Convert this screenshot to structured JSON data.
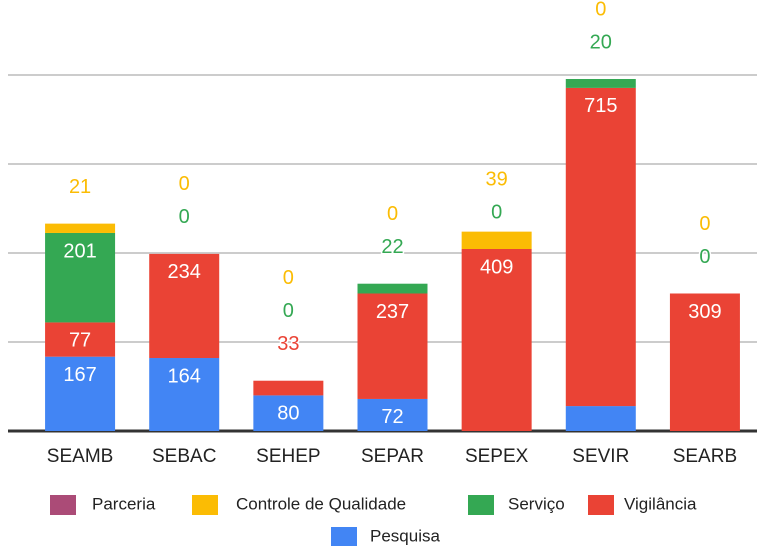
{
  "chart_data": {
    "type": "stacked_bar",
    "categories": [
      "SEAMB",
      "SEBAC",
      "SEHEP",
      "SEPAR",
      "SEPEX",
      "SEVIR",
      "SEARB"
    ],
    "series": [
      {
        "name": "Pesquisa",
        "color": "#4285f4",
        "values": [
          167,
          164,
          80,
          72,
          0,
          56,
          0
        ]
      },
      {
        "name": "Vigilância",
        "color": "#ea4335",
        "values": [
          77,
          234,
          33,
          237,
          409,
          715,
          309
        ]
      },
      {
        "name": "Serviço",
        "color": "#34a853",
        "values": [
          201,
          0,
          0,
          22,
          0,
          20,
          0
        ]
      },
      {
        "name": "Controle de Qualidade",
        "color": "#fbbc04",
        "values": [
          21,
          0,
          0,
          0,
          39,
          0,
          0
        ]
      },
      {
        "name": "Parceria",
        "color": "#ab4b77",
        "values": [
          0,
          0,
          0,
          0,
          0,
          0,
          0
        ],
        "labels": false
      }
    ],
    "ylim": [
      0,
      800
    ],
    "yticks": [
      0,
      200,
      400,
      600,
      800
    ],
    "grid": true
  }
}
